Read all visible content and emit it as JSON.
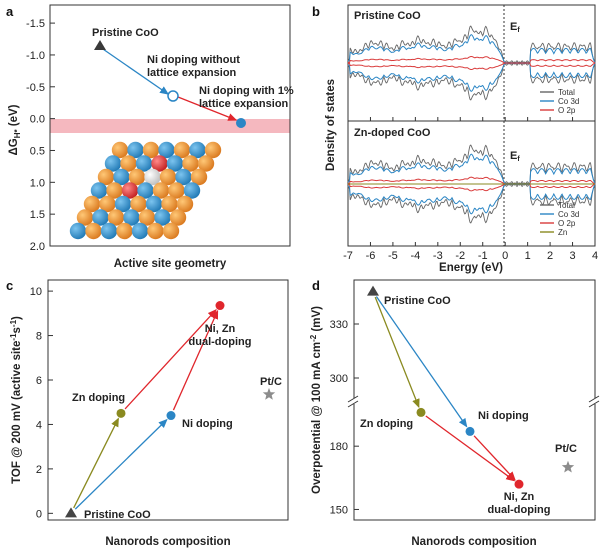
{
  "chart_data": [
    {
      "panel": "a",
      "type": "scatter",
      "xlabel": "Active site geometry",
      "ylabel": "ΔG_H* (eV)",
      "ylim": [
        -1.8,
        2.0
      ],
      "y_inverted": true,
      "yticks": [
        "-1.5",
        "-1.0",
        "-0.5",
        "0.0",
        "0.5",
        "1.0",
        "1.5",
        "2.0"
      ],
      "shaded_band": [
        -0.1,
        0.1
      ],
      "points": [
        {
          "label": "Pristine CoO",
          "x": 0.2,
          "y": -1.3,
          "marker": "triangle",
          "color": "#444444"
        },
        {
          "label": "Ni doping without lattice expansion",
          "x": 0.55,
          "y": -0.42,
          "marker": "open-circle",
          "color": "#2b86c5"
        },
        {
          "label": "Ni doping with 1% lattice expansion",
          "x": 0.87,
          "y": 0.05,
          "marker": "circle",
          "color": "#2b86c5"
        }
      ],
      "annotations": [
        "Pristine CoO",
        "Ni doping without",
        "lattice expansion",
        "Ni doping with 1%",
        "lattice expansion"
      ]
    },
    {
      "panel": "b",
      "type": "line",
      "xlabel": "Energy (eV)",
      "ylabel": "Density of states",
      "xlim": [
        -7,
        4
      ],
      "xticks": [
        "-7",
        "-6",
        "-5",
        "-4",
        "-3",
        "-2",
        "-1",
        "0",
        "1",
        "2",
        "3",
        "4"
      ],
      "fermi_label": "E_f",
      "subplots": [
        {
          "title": "Pristine CoO",
          "series": [
            "Total",
            "Co 3d",
            "O 2p"
          ],
          "colors": [
            "#666666",
            "#2b86c5",
            "#d93a3a"
          ]
        },
        {
          "title": "Zn-doped CoO",
          "series": [
            "Total",
            "Co 3d",
            "O 2p",
            "Zn"
          ],
          "colors": [
            "#666666",
            "#2b86c5",
            "#d93a3a",
            "#8a8a20"
          ]
        }
      ]
    },
    {
      "panel": "c",
      "type": "scatter",
      "xlabel": "Nanorods composition",
      "ylabel": "TOF @ 200 mV (active site⁻¹s⁻¹)",
      "ylim": [
        -0.3,
        10.5
      ],
      "yticks": [
        "0",
        "2",
        "4",
        "6",
        "8",
        "10"
      ],
      "points": [
        {
          "label": "Pristine CoO",
          "x": 0,
          "y": 0.0,
          "marker": "triangle",
          "color": "#444444"
        },
        {
          "label": "Zn doping",
          "x": 1,
          "y": 4.5,
          "marker": "circle",
          "color": "#8a8a20"
        },
        {
          "label": "Ni doping",
          "x": 2,
          "y": 4.4,
          "marker": "circle",
          "color": "#2b86c5"
        },
        {
          "label": "Ni, Zn dual-doping",
          "x": 3,
          "y": 9.35,
          "marker": "circle",
          "color": "#e0262c"
        },
        {
          "label": "Pt/C",
          "x": 4,
          "y": 5.35,
          "marker": "star",
          "color": "#8c8c8c"
        }
      ],
      "annotations": [
        "Pristine CoO",
        "Zn doping",
        "Ni doping",
        "Ni, Zn",
        "dual-doping",
        "Pt/C"
      ]
    },
    {
      "panel": "d",
      "type": "scatter",
      "xlabel": "Nanorods composition",
      "ylabel": "Overpotential @ 100 mA cm⁻² (mV)",
      "axis_break": [
        200,
        290
      ],
      "yticks": [
        "150",
        "180",
        "300",
        "330"
      ],
      "points": [
        {
          "label": "Pristine CoO",
          "x": 0,
          "y": 348,
          "marker": "triangle",
          "color": "#444444"
        },
        {
          "label": "Zn doping",
          "x": 1,
          "y": 196,
          "marker": "circle",
          "color": "#8a8a20"
        },
        {
          "label": "Ni doping",
          "x": 2,
          "y": 187,
          "marker": "circle",
          "color": "#2b86c5"
        },
        {
          "label": "Ni, Zn dual-doping",
          "x": 3,
          "y": 162,
          "marker": "circle",
          "color": "#e0262c"
        },
        {
          "label": "Pt/C",
          "x": 4,
          "y": 170,
          "marker": "star",
          "color": "#8c8c8c"
        }
      ],
      "annotations": [
        "Pristine CoO",
        "Zn doping",
        "Ni doping",
        "Ni, Zn",
        "dual-doping",
        "Pt/C"
      ]
    }
  ],
  "panels": {
    "a": {
      "letter": "a",
      "ylabel": "ΔG",
      "ylabel_sub": "H*",
      "ylabel_unit": " (eV)",
      "xlabel": "Active site geometry",
      "ann": [
        "Pristine CoO",
        "Ni doping without",
        "lattice expansion",
        "Ni doping with 1%",
        "lattice expansion"
      ]
    },
    "b": {
      "letter": "b",
      "ylabel": "Density of states",
      "xlabel": "Energy (eV)",
      "ef": "E",
      "ef_sub": "f",
      "top_title": "Pristine CoO",
      "bot_title": "Zn-doped CoO",
      "top_legend": [
        "Total",
        "Co 3d",
        "O 2p"
      ],
      "bot_legend": [
        "Total",
        "Co 3d",
        "O 2p",
        "Zn"
      ]
    },
    "c": {
      "letter": "c",
      "ylabel": "TOF @ 200 mV (active site",
      "ylabel_sup": "-1",
      "ylabel_mid": "s",
      "ylabel_sup2": "-1",
      "ylabel_end": ")",
      "xlabel": "Nanorods composition"
    },
    "d": {
      "letter": "d",
      "ylabel": "Overpotential @ 100 mA cm",
      "ylabel_sup": "-2",
      "ylabel_end": " (mV)",
      "xlabel": "Nanorods composition"
    }
  }
}
